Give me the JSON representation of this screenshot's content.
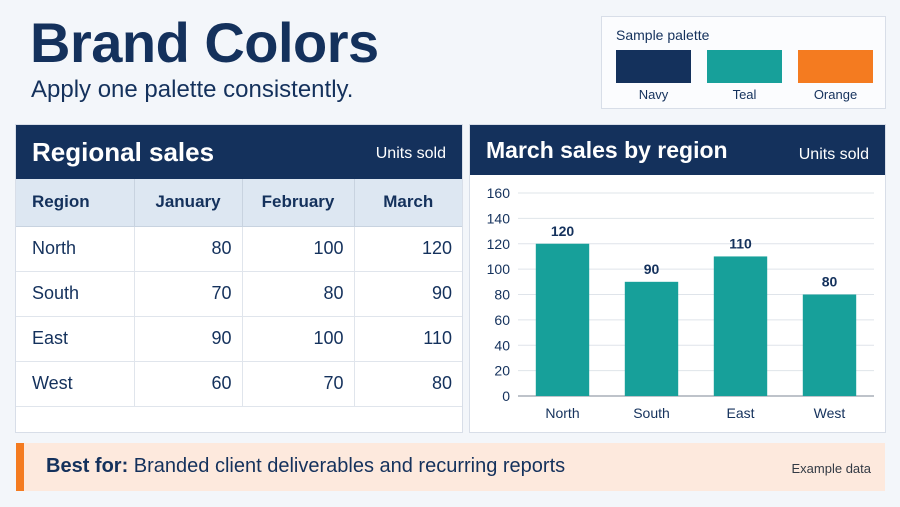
{
  "header": {
    "title": "Brand Colors",
    "subtitle": "Apply one palette consistently."
  },
  "palette": {
    "title": "Sample palette",
    "swatches": [
      {
        "label": "Navy",
        "color": "#14315c"
      },
      {
        "label": "Teal",
        "color": "#17a09a"
      },
      {
        "label": "Orange",
        "color": "#f47b20"
      }
    ]
  },
  "table": {
    "title": "Regional sales",
    "unit": "Units sold",
    "columns": [
      "Region",
      "January",
      "February",
      "March"
    ],
    "rows": [
      [
        "North",
        "80",
        "100",
        "120"
      ],
      [
        "South",
        "70",
        "80",
        "90"
      ],
      [
        "East",
        "90",
        "100",
        "110"
      ],
      [
        "West",
        "60",
        "70",
        "80"
      ]
    ]
  },
  "chart_panel": {
    "title": "March sales by region",
    "unit": "Units sold"
  },
  "chart_data": {
    "type": "bar",
    "title": "March sales by region",
    "ylabel": "Units sold",
    "xlabel": "",
    "categories": [
      "North",
      "South",
      "East",
      "West"
    ],
    "values": [
      120,
      90,
      110,
      80
    ],
    "ylim": [
      0,
      160
    ],
    "yticks": [
      0,
      20,
      40,
      60,
      80,
      100,
      120,
      140,
      160
    ],
    "data_labels": true,
    "grid": true,
    "bar_color": "#17a09a"
  },
  "footer": {
    "label": "Best for:",
    "text": "Branded client deliverables and recurring reports",
    "note": "Example data"
  }
}
